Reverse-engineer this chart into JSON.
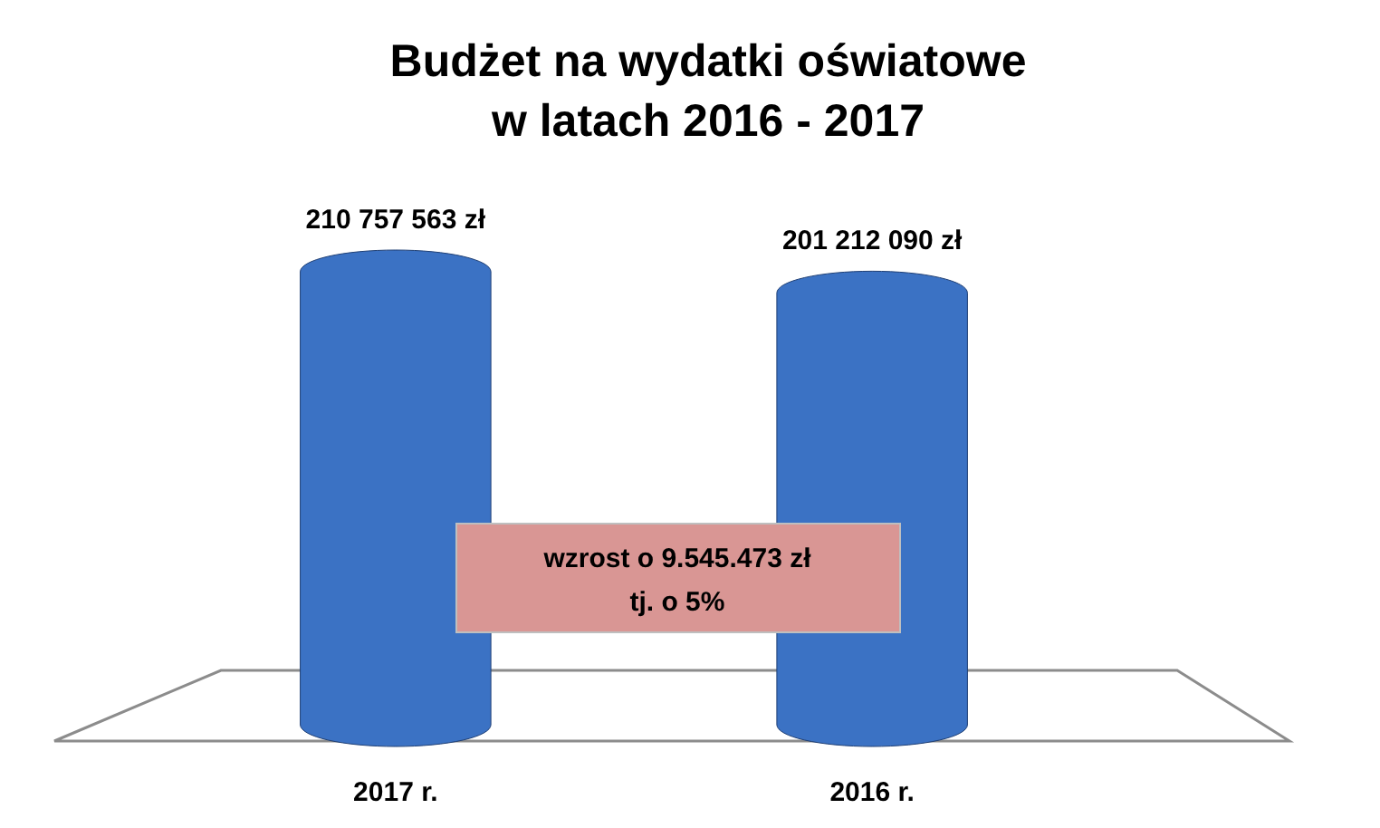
{
  "chart_data": {
    "type": "bar",
    "title": "Budżet na wydatki oświatowe\nw latach 2016 - 2017",
    "categories": [
      "2017 r.",
      "2016 r."
    ],
    "values": [
      210757563,
      201212090
    ],
    "value_labels": [
      "210 757 563 zł",
      "201 212 090 zł"
    ],
    "color": "#3b72c4",
    "annotations": [
      "wzrost o 9.545.473 zł\ntj. o 5%"
    ]
  }
}
